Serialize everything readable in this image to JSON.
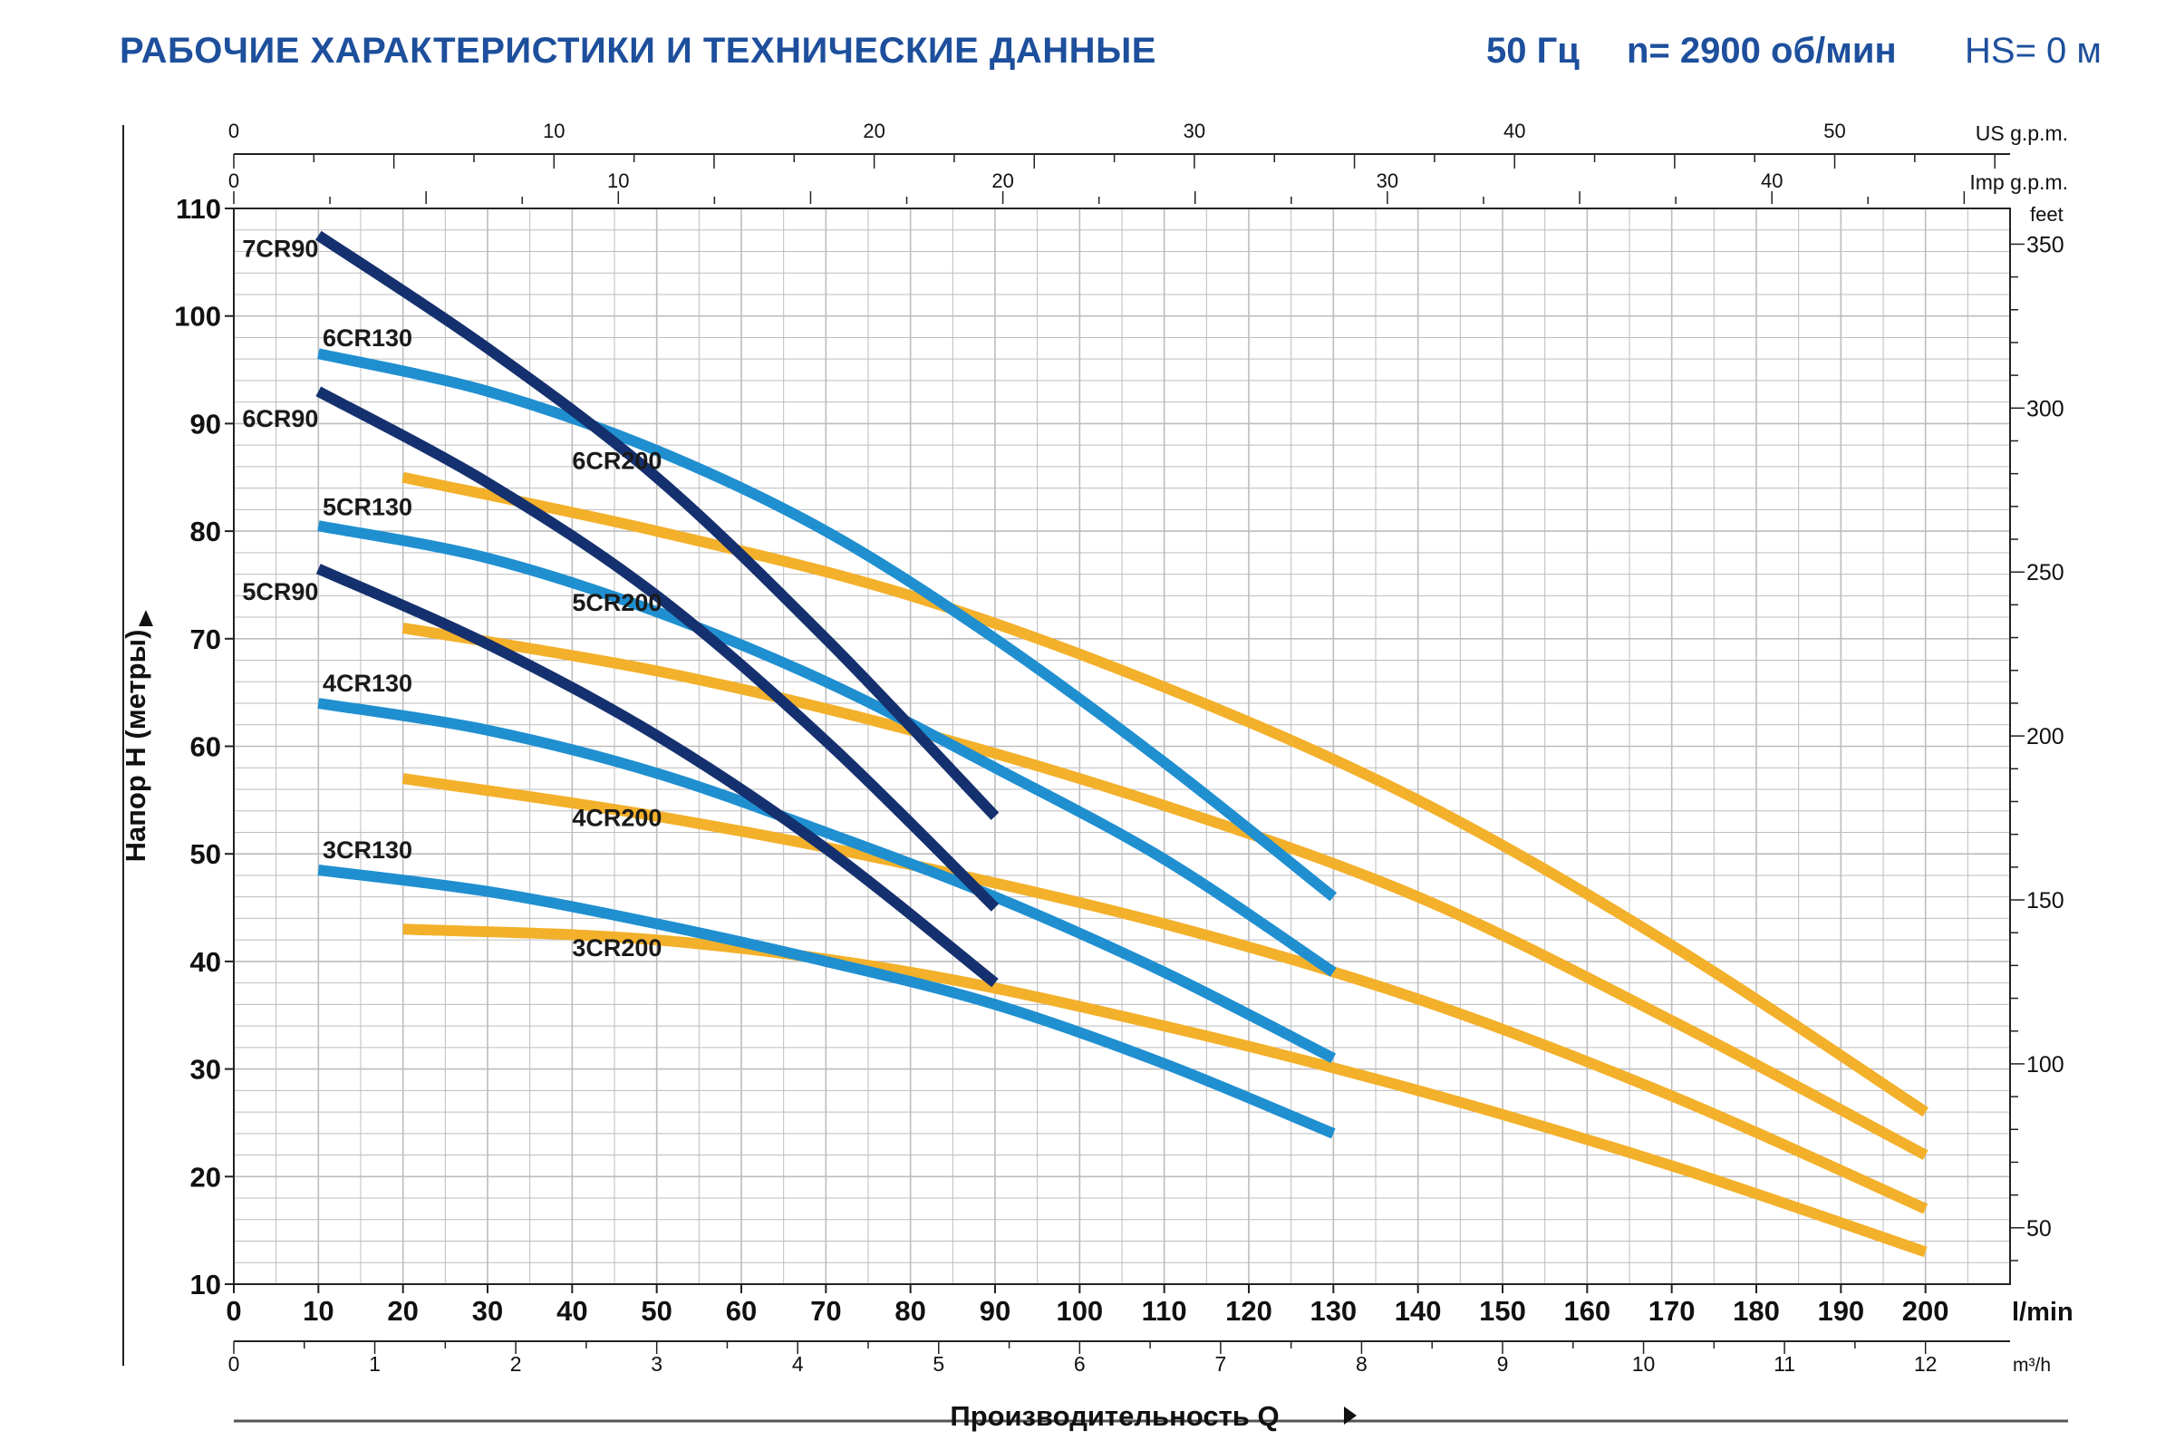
{
  "header": {
    "title": "РАБОЧИЕ ХАРАКТЕРИСТИКИ И ТЕХНИЧЕСКИЕ ДАННЫЕ",
    "frequency": "50 Гц",
    "speed": "n= 2900 об/мин",
    "hs": "HS= 0 м"
  },
  "colors": {
    "title": "#1d4f9c",
    "cr90": "#15306e",
    "cr130": "#1f8fd0",
    "cr200": "#f3b02a",
    "grid": "#bdbdbd"
  },
  "chart_data": {
    "type": "line",
    "xlabel": "Производительность Q",
    "ylabel": "Напор H (метры)",
    "x_unit": "l/min",
    "x_ticks": [
      0,
      10,
      20,
      30,
      40,
      50,
      60,
      70,
      80,
      90,
      100,
      110,
      120,
      130,
      140,
      150,
      160,
      170,
      180,
      190,
      200
    ],
    "x_tick_labels": [
      "0",
      "10",
      "20",
      "30",
      "40",
      "50",
      "60",
      "70",
      "80",
      "90",
      "100",
      "110",
      "120",
      "130",
      "140",
      "150",
      "160",
      "170",
      "180",
      "190",
      "200"
    ],
    "xlim": [
      0,
      210
    ],
    "ylim": [
      10,
      110
    ],
    "y_ticks": [
      10,
      20,
      30,
      40,
      50,
      60,
      70,
      80,
      90,
      100,
      110
    ],
    "y_tick_labels": [
      "10",
      "20",
      "30",
      "40",
      "50",
      "60",
      "70",
      "80",
      "90",
      "100",
      "110"
    ],
    "grid": true,
    "secondary_axes": {
      "m3h": {
        "unit": "m³/h",
        "ticks": [
          0,
          1,
          2,
          3,
          4,
          5,
          6,
          7,
          8,
          9,
          10,
          11,
          12
        ],
        "tick_labels": [
          "0",
          "1",
          "2",
          "3",
          "4",
          "5",
          "6",
          "7",
          "8",
          "9",
          "10",
          "11",
          "12"
        ]
      },
      "us_gpm": {
        "unit": "US g.p.m.",
        "ticks": [
          0,
          10,
          20,
          30,
          40,
          50
        ],
        "tick_labels": [
          "0",
          "10",
          "20",
          "30",
          "40",
          "50"
        ]
      },
      "imp_gpm": {
        "unit": "Imp g.p.m.",
        "ticks": [
          0,
          10,
          20,
          30,
          40
        ],
        "tick_labels": [
          "0",
          "10",
          "20",
          "30",
          "40"
        ]
      },
      "feet": {
        "unit": "feet",
        "ticks": [
          50,
          100,
          150,
          200,
          250,
          300,
          350
        ],
        "tick_labels": [
          "50",
          "100",
          "150",
          "200",
          "250",
          "300",
          "350"
        ]
      }
    },
    "series": [
      {
        "name": "7CR90",
        "color_key": "cr90",
        "x": [
          10,
          30,
          50,
          70,
          90
        ],
        "y": [
          107.5,
          97,
          85,
          70,
          53.5
        ]
      },
      {
        "name": "6CR90",
        "color_key": "cr90",
        "x": [
          10,
          30,
          50,
          70,
          90
        ],
        "y": [
          93,
          84.5,
          74,
          60.5,
          45
        ]
      },
      {
        "name": "5CR90",
        "color_key": "cr90",
        "x": [
          10,
          30,
          50,
          70,
          90
        ],
        "y": [
          76.5,
          69.5,
          61,
          50.5,
          38
        ]
      },
      {
        "name": "6CR130",
        "color_key": "cr130",
        "x": [
          10,
          30,
          50,
          70,
          90,
          110,
          130
        ],
        "y": [
          96.5,
          93,
          87.5,
          80,
          70,
          58.5,
          46
        ]
      },
      {
        "name": "5CR130",
        "color_key": "cr130",
        "x": [
          10,
          30,
          50,
          70,
          90,
          110,
          130
        ],
        "y": [
          80.5,
          77.5,
          72.5,
          66,
          58,
          49.5,
          39
        ]
      },
      {
        "name": "4CR130",
        "color_key": "cr130",
        "x": [
          10,
          30,
          50,
          70,
          90,
          110,
          130
        ],
        "y": [
          64,
          61.5,
          57.5,
          52,
          46,
          39,
          31
        ]
      },
      {
        "name": "3CR130",
        "color_key": "cr130",
        "x": [
          10,
          30,
          50,
          70,
          90,
          110,
          130
        ],
        "y": [
          48.5,
          46.5,
          43.5,
          40,
          36,
          30.5,
          24
        ]
      },
      {
        "name": "6CR200",
        "color_key": "cr200",
        "x": [
          20,
          50,
          80,
          110,
          140,
          170,
          200
        ],
        "y": [
          85,
          80,
          74,
          65.5,
          55,
          41.5,
          26
        ]
      },
      {
        "name": "5CR200",
        "color_key": "cr200",
        "x": [
          20,
          50,
          80,
          110,
          140,
          170,
          200
        ],
        "y": [
          71,
          67,
          61.5,
          54.5,
          46,
          34.5,
          22
        ]
      },
      {
        "name": "4CR200",
        "color_key": "cr200",
        "x": [
          20,
          50,
          80,
          110,
          140,
          170,
          200
        ],
        "y": [
          57,
          53.5,
          49,
          43.5,
          36.5,
          27.5,
          17
        ]
      },
      {
        "name": "3CR200",
        "color_key": "cr200",
        "x": [
          20,
          50,
          80,
          110,
          140,
          170,
          200
        ],
        "y": [
          43,
          42,
          39,
          34,
          28,
          21,
          13
        ]
      }
    ],
    "curve_labels": [
      {
        "text": "7CR90",
        "x": 1,
        "y": 105.5
      },
      {
        "text": "6CR130",
        "x": 10.5,
        "y": 97.2
      },
      {
        "text": "6CR90",
        "x": 1,
        "y": 89.7
      },
      {
        "text": "5CR130",
        "x": 10.5,
        "y": 81.5
      },
      {
        "text": "5CR90",
        "x": 1,
        "y": 73.6
      },
      {
        "text": "4CR130",
        "x": 10.5,
        "y": 65.1
      },
      {
        "text": "3CR130",
        "x": 10.5,
        "y": 49.6
      },
      {
        "text": "6CR200",
        "x": 40,
        "y": 85.8
      },
      {
        "text": "5CR200",
        "x": 40,
        "y": 72.6
      },
      {
        "text": "4CR200",
        "x": 40,
        "y": 52.6
      },
      {
        "text": "3CR200",
        "x": 40,
        "y": 40.5
      }
    ]
  }
}
